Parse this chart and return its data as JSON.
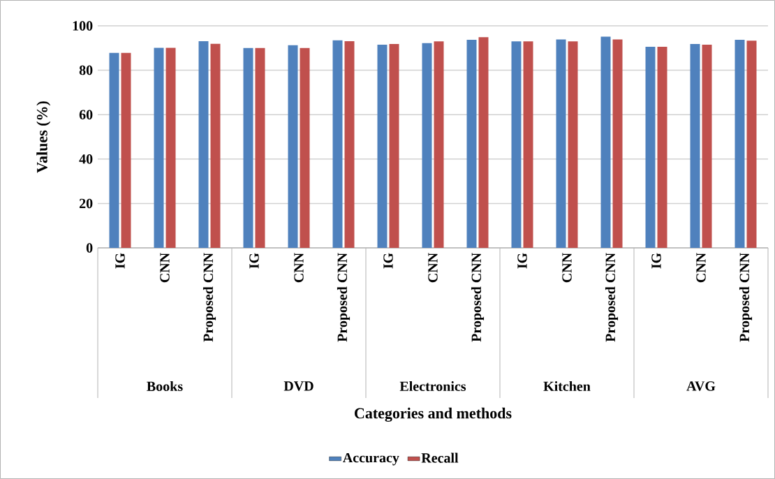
{
  "chart_data": {
    "type": "bar",
    "xlabel": "Categories and methods",
    "ylabel": "Values (%)",
    "categories": [
      "IG",
      "CNN",
      "Proposed CNN",
      "IG",
      "CNN",
      "Proposed CNN",
      "IG",
      "CNN",
      "Proposed CNN",
      "IG",
      "CNN",
      "Proposed CNN",
      "IG",
      "CNN",
      "Proposed CNN"
    ],
    "annotations": [
      "Books",
      "DVD",
      "Electronics",
      "Kitchen",
      "AVG"
    ],
    "series": [
      {
        "name": "Accuracy",
        "color": "#4f81bd",
        "values": [
          87.8,
          90.1,
          93.1,
          90.0,
          91.3,
          93.5,
          91.5,
          92.2,
          93.7,
          93.0,
          93.9,
          95.1,
          90.6,
          91.8,
          93.7
        ]
      },
      {
        "name": "Recall",
        "color": "#c0504d",
        "values": [
          87.8,
          90.1,
          91.9,
          90.0,
          90.0,
          93.1,
          91.8,
          93.0,
          94.9,
          93.0,
          93.0,
          93.9,
          90.6,
          91.5,
          93.3
        ]
      }
    ],
    "ylim": [
      0,
      100
    ],
    "yticks": [
      0,
      20,
      40,
      60,
      80,
      100
    ],
    "grid": "y",
    "legend": "bottom"
  }
}
